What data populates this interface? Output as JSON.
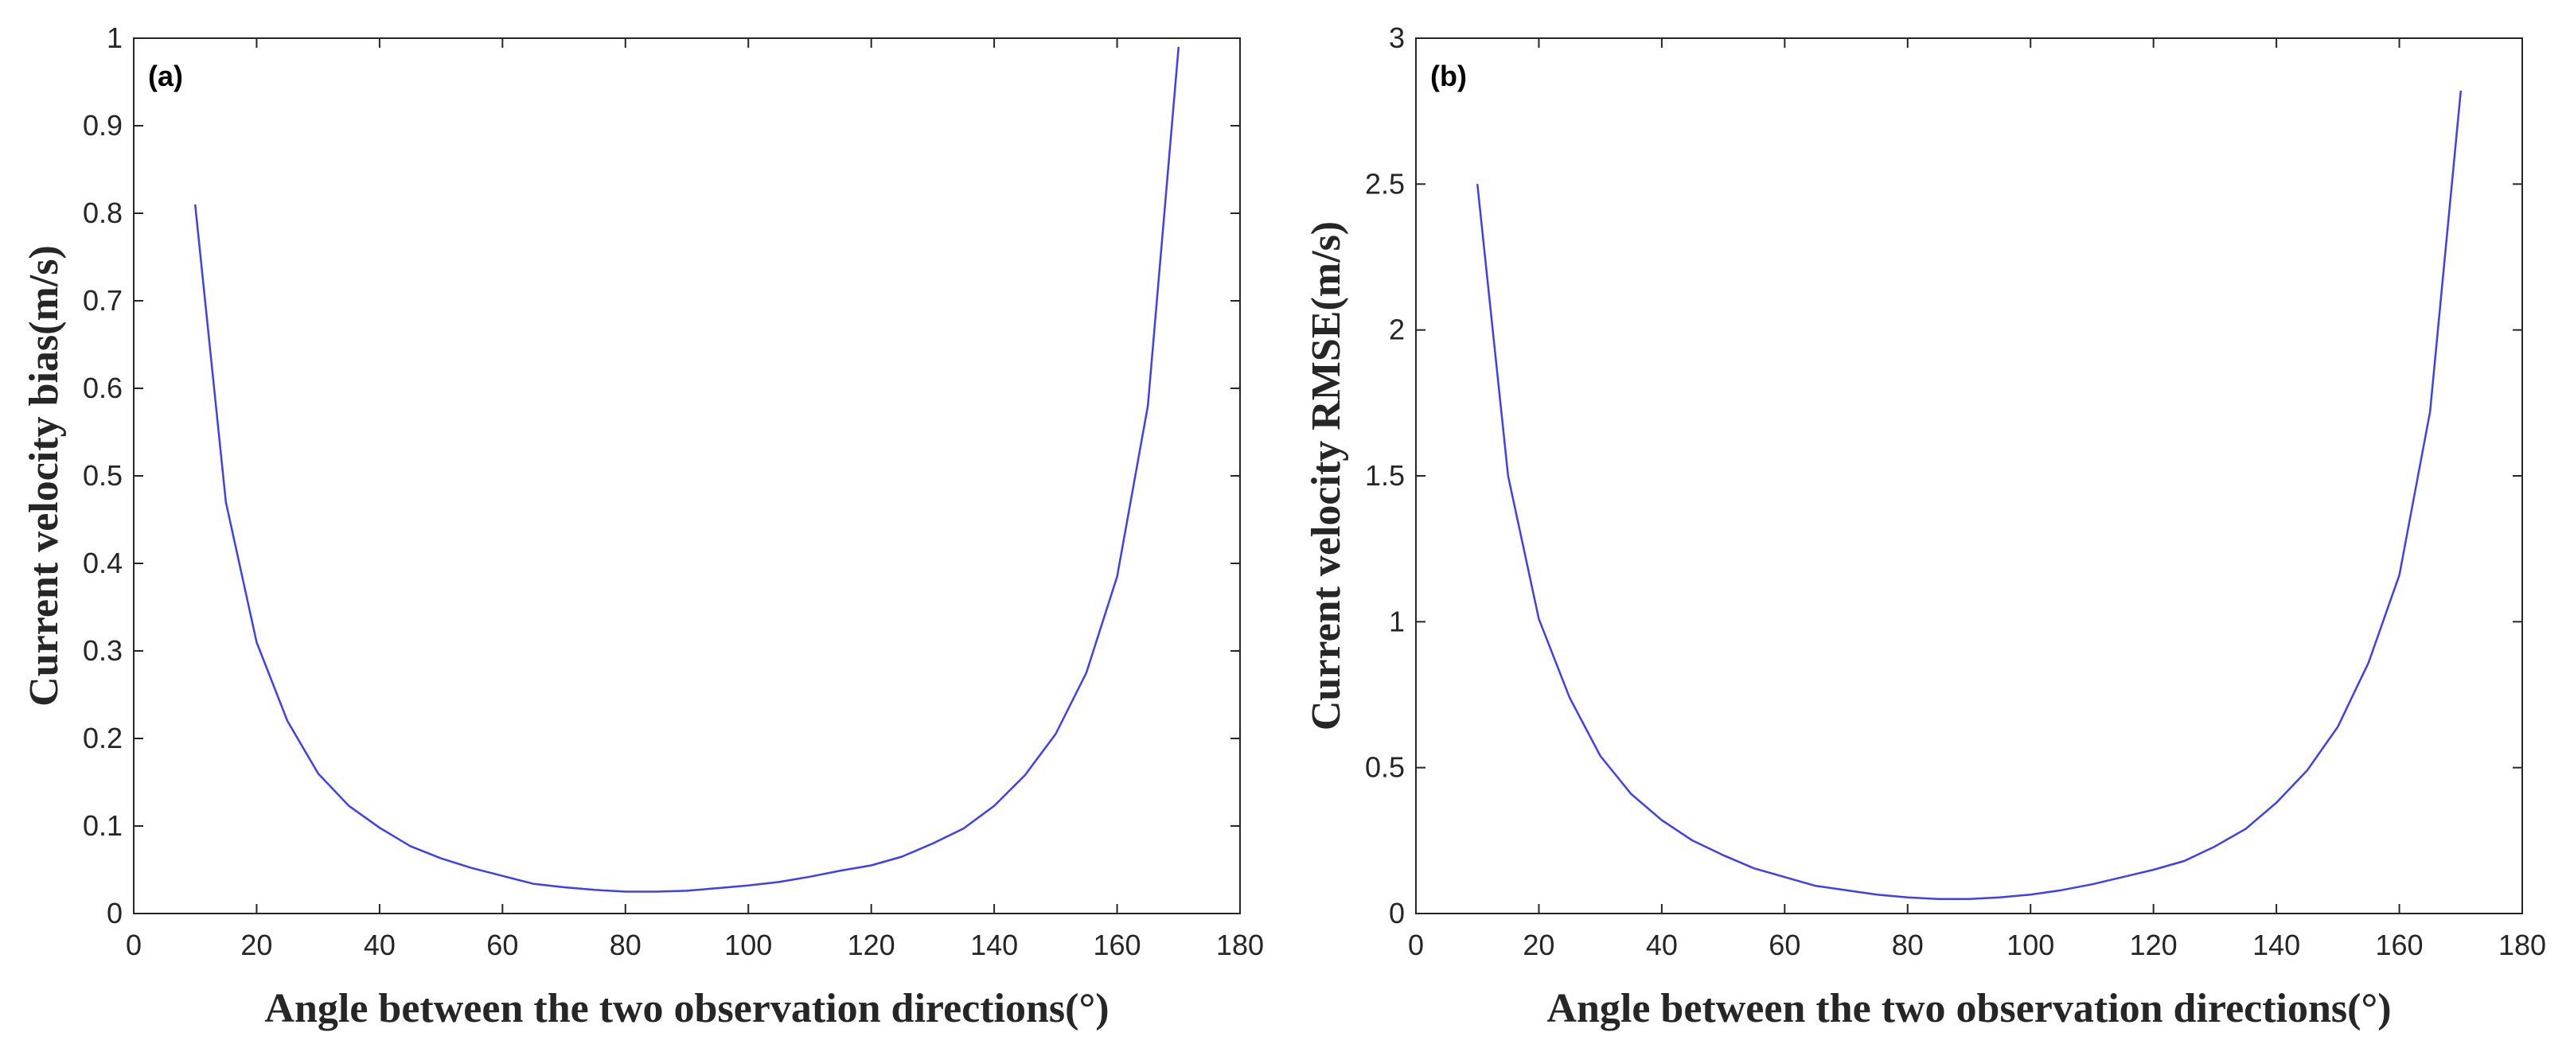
{
  "colors": {
    "line": "#3f3ff2",
    "axis": "#262626",
    "background": "#ffffff"
  },
  "chart_data": [
    {
      "type": "line",
      "panel_label": "(a)",
      "xlabel": "Angle between the two observation directions(°)",
      "ylabel": "Current velocity bias(m/s)",
      "xlim": [
        0,
        180
      ],
      "ylim": [
        0,
        1
      ],
      "xticks": [
        0,
        20,
        40,
        60,
        80,
        100,
        120,
        140,
        160,
        180
      ],
      "xtick_labels": [
        "0",
        "20",
        "40",
        "60",
        "80",
        "100",
        "120",
        "140",
        "160",
        "180"
      ],
      "yticks": [
        0,
        0.1,
        0.2,
        0.3,
        0.4,
        0.5,
        0.6,
        0.7,
        0.8,
        0.9,
        1
      ],
      "ytick_labels": [
        "0",
        "0.1",
        "0.2",
        "0.3",
        "0.4",
        "0.5",
        "0.6",
        "0.7",
        "0.8",
        "0.9",
        "1"
      ],
      "grid": false,
      "series": [
        {
          "name": "bias",
          "x": [
            10,
            15,
            20,
            25,
            30,
            35,
            40,
            45,
            50,
            55,
            60,
            65,
            70,
            75,
            80,
            85,
            90,
            95,
            100,
            105,
            110,
            115,
            120,
            125,
            130,
            135,
            140,
            145,
            150,
            155,
            160,
            165,
            170
          ],
          "y": [
            0.81,
            0.47,
            0.31,
            0.22,
            0.16,
            0.123,
            0.098,
            0.077,
            0.063,
            0.052,
            0.043,
            0.034,
            0.03,
            0.027,
            0.025,
            0.025,
            0.026,
            0.029,
            0.032,
            0.036,
            0.042,
            0.049,
            0.055,
            0.065,
            0.08,
            0.097,
            0.123,
            0.158,
            0.205,
            0.275,
            0.385,
            0.58,
            0.99
          ]
        }
      ]
    },
    {
      "type": "line",
      "panel_label": "(b)",
      "xlabel": "Angle between the two observation directions(°)",
      "ylabel": "Current velocity RMSE(m/s)",
      "xlim": [
        0,
        180
      ],
      "ylim": [
        0,
        3
      ],
      "xticks": [
        0,
        20,
        40,
        60,
        80,
        100,
        120,
        140,
        160,
        180
      ],
      "xtick_labels": [
        "0",
        "20",
        "40",
        "60",
        "80",
        "100",
        "120",
        "140",
        "160",
        "180"
      ],
      "yticks": [
        0,
        0.5,
        1,
        1.5,
        2,
        2.5,
        3
      ],
      "ytick_labels": [
        "0",
        "0.5",
        "1",
        "1.5",
        "2",
        "2.5",
        "3"
      ],
      "grid": false,
      "series": [
        {
          "name": "rmse",
          "x": [
            10,
            15,
            20,
            25,
            30,
            35,
            40,
            45,
            50,
            55,
            60,
            65,
            70,
            75,
            80,
            85,
            90,
            95,
            100,
            105,
            110,
            115,
            120,
            125,
            130,
            135,
            140,
            145,
            150,
            155,
            160,
            165,
            170
          ],
          "y": [
            2.5,
            1.5,
            1.01,
            0.74,
            0.54,
            0.41,
            0.32,
            0.25,
            0.2,
            0.155,
            0.125,
            0.095,
            0.08,
            0.065,
            0.055,
            0.05,
            0.05,
            0.055,
            0.065,
            0.08,
            0.1,
            0.125,
            0.15,
            0.18,
            0.23,
            0.29,
            0.38,
            0.49,
            0.64,
            0.86,
            1.16,
            1.72,
            2.82
          ]
        }
      ]
    }
  ]
}
